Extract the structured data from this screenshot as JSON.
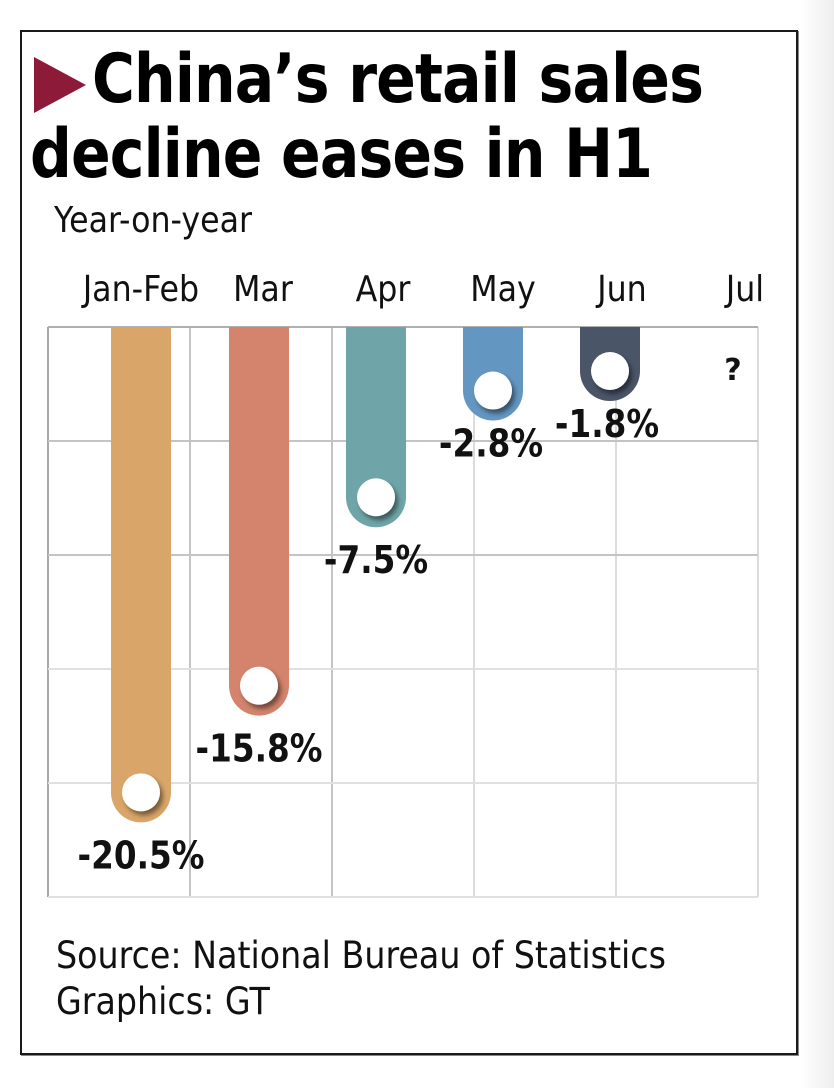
{
  "header": {
    "title_line1": "China’s retail sales",
    "title_line2": "decline eases in H1",
    "accent_color": "#8E1A3A"
  },
  "footer": {
    "source": "Source: National Bureau of Statistics",
    "graphics": "Graphics: GT"
  },
  "chart_data": {
    "type": "bar",
    "title": "China’s retail sales decline eases in H1",
    "subtitle": "Year-on-year",
    "xlabel": "",
    "ylabel": "Year-on-year",
    "orientation": "vertical-downward",
    "categories": [
      "Jan-Feb",
      "Mar",
      "Apr",
      "May",
      "Jun",
      "Jul"
    ],
    "values": [
      -20.5,
      -15.8,
      -7.5,
      -2.8,
      -1.8,
      null
    ],
    "data_labels": [
      "-20.5%",
      "-15.8%",
      "-7.5%",
      "-2.8%",
      "-1.8%",
      "?"
    ],
    "colors": [
      "#D9A568",
      "#D4836C",
      "#6FA5A8",
      "#6396C1",
      "#4B5568",
      null
    ],
    "unit": "%",
    "ylim": [
      -25,
      0
    ],
    "grid": true,
    "legend": "none"
  }
}
